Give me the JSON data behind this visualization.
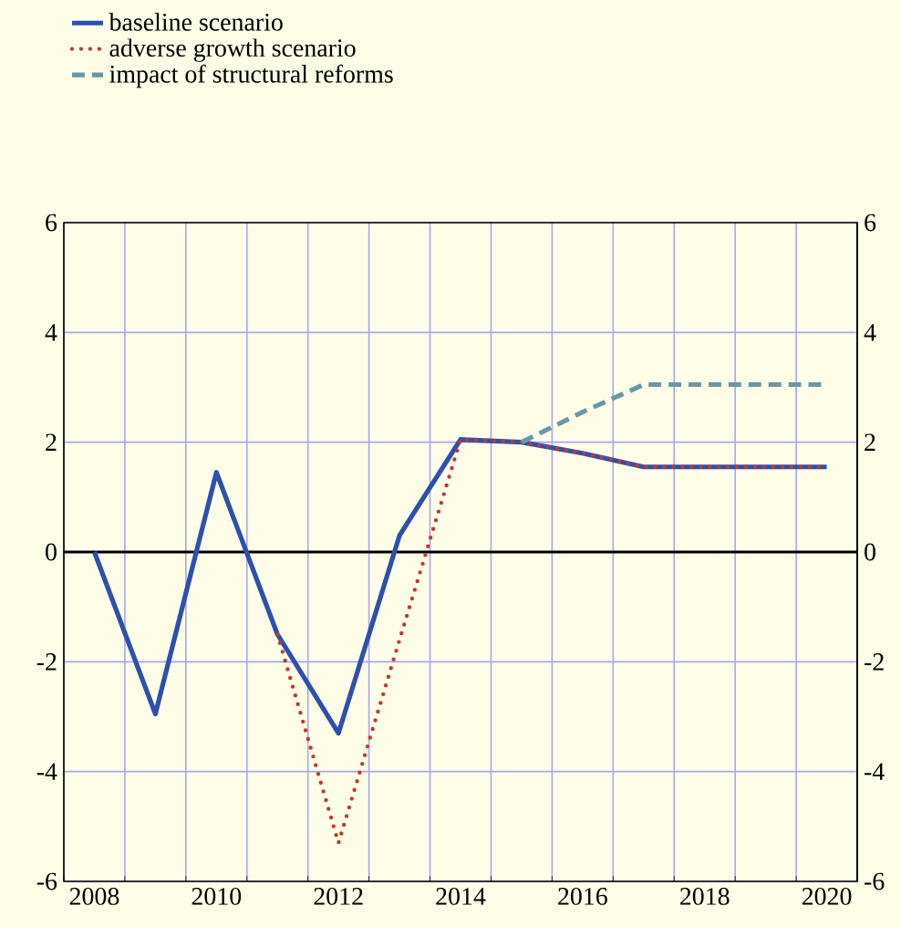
{
  "chart_data": {
    "type": "line",
    "categories": [
      "2008",
      null,
      "2010",
      null,
      "2012",
      null,
      "2014",
      null,
      "2016",
      null,
      "2018",
      null,
      "2020"
    ],
    "series": [
      {
        "name": "baseline scenario",
        "color": "#2f4fae",
        "line_style": "solid",
        "values": [
          0,
          -2.95,
          1.45,
          -1.5,
          -3.3,
          0.3,
          2.05,
          2.0,
          1.8,
          1.55,
          1.55,
          1.55,
          1.55
        ]
      },
      {
        "name": "adverse growth scenario",
        "color": "#c03a2e",
        "line_style": "dotted",
        "values": [
          null,
          null,
          null,
          -1.5,
          -5.3,
          -1.6,
          2.05,
          2.0,
          1.8,
          1.55,
          1.55,
          1.55,
          1.55
        ]
      },
      {
        "name": "impact of structural reforms",
        "color": "#6b97a6",
        "line_style": "dashed",
        "values": [
          null,
          null,
          null,
          null,
          null,
          null,
          null,
          2.0,
          2.55,
          3.05,
          3.05,
          3.05,
          3.05
        ]
      }
    ],
    "ylim": [
      -6,
      6
    ],
    "yticks": [
      -6,
      -4,
      -2,
      0,
      2,
      4,
      6
    ],
    "y2lim": [
      -6,
      6
    ],
    "y2ticks": [
      -6,
      -4,
      -2,
      0,
      2,
      4,
      6
    ],
    "ref_lines": [
      {
        "axis": "y",
        "value": 0,
        "color": "#000000"
      }
    ],
    "grid": true,
    "legend": "top left"
  }
}
